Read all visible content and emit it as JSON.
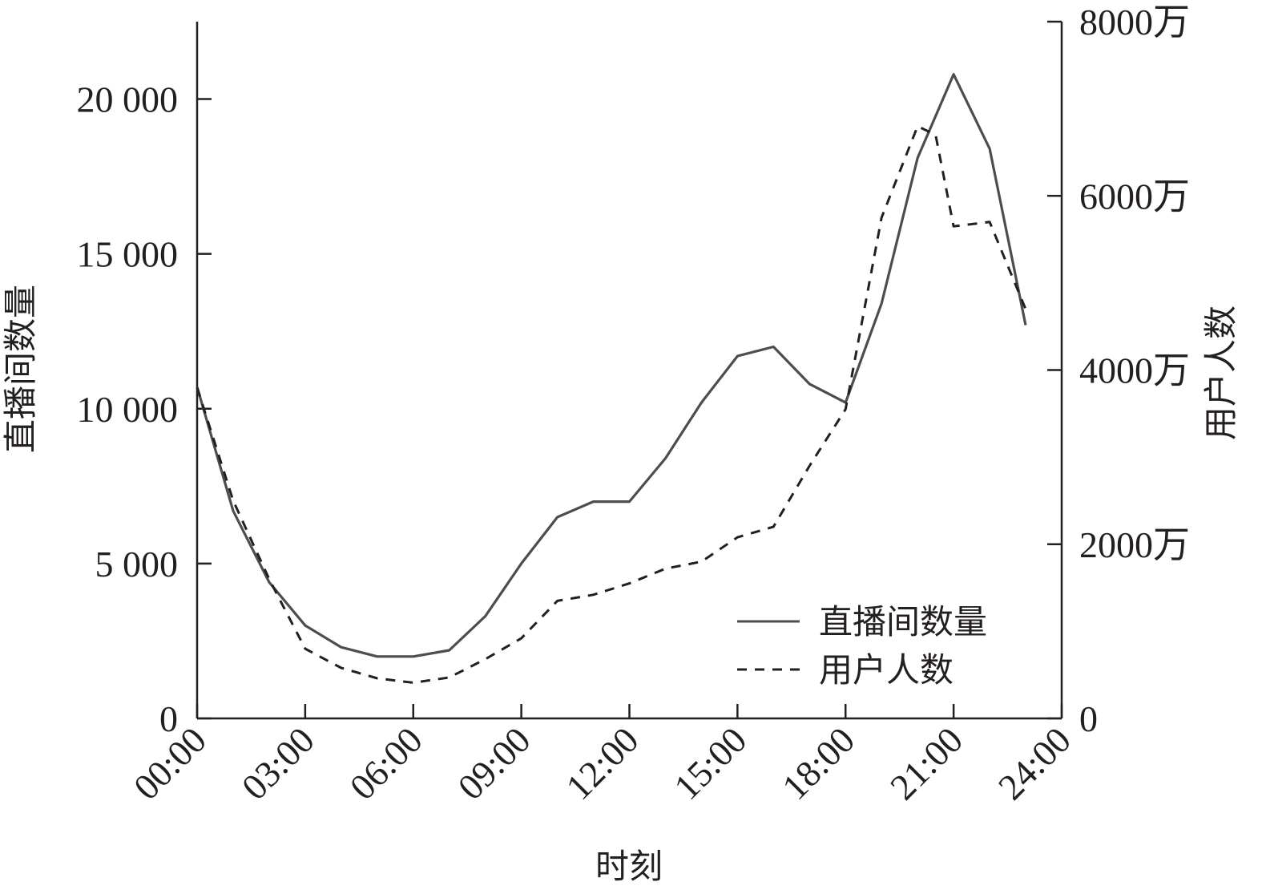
{
  "chart_data": {
    "type": "line",
    "xlabel": "时刻",
    "ylabel_left": "直播间数量",
    "ylabel_right": "用户人数",
    "x_tick_labels": [
      "00:00",
      "03:00",
      "06:00",
      "09:00",
      "12:00",
      "15:00",
      "18:00",
      "21:00",
      "24:00"
    ],
    "x_ticks": [
      0,
      3,
      6,
      9,
      12,
      15,
      18,
      21,
      24
    ],
    "xlim": [
      0,
      24
    ],
    "y_left_ticks": [
      0,
      5000,
      10000,
      15000,
      20000
    ],
    "y_left_tick_labels": [
      "0",
      "5 000",
      "10 000",
      "15 000",
      "20 000"
    ],
    "y_left_lim": [
      0,
      22500
    ],
    "y_right_ticks": [
      0,
      2000,
      4000,
      6000,
      8000
    ],
    "y_right_tick_labels": [
      "0",
      "2000万",
      "4000万",
      "6000万",
      "8000万"
    ],
    "y_right_lim": [
      0,
      8000
    ],
    "legend_position": "lower-right",
    "grid": false,
    "series": [
      {
        "name": "直播间数量",
        "axis": "left",
        "style": "solid",
        "color": "#4d4d4f",
        "x": [
          0,
          1,
          2,
          3,
          4,
          5,
          6,
          7,
          8,
          9,
          10,
          11,
          12,
          13,
          14,
          15,
          16,
          17,
          18,
          19,
          20,
          21,
          22,
          23
        ],
        "values": [
          10700,
          6700,
          4400,
          3000,
          2300,
          2000,
          2000,
          2200,
          3300,
          5000,
          6500,
          7000,
          7000,
          8400,
          10200,
          11700,
          12000,
          10800,
          10200,
          13400,
          18100,
          20800,
          18400,
          12700
        ]
      },
      {
        "name": "用户人数",
        "axis": "right",
        "style": "dashed",
        "color": "#231f20",
        "x": [
          0,
          1,
          2,
          3,
          4,
          5,
          6,
          7,
          8,
          9,
          10,
          11,
          12,
          13,
          14,
          15,
          16,
          17,
          18,
          19,
          20,
          20.5,
          21,
          22,
          23
        ],
        "values": [
          3800,
          2500,
          1600,
          800,
          580,
          460,
          410,
          470,
          680,
          920,
          1350,
          1420,
          1550,
          1720,
          1800,
          2080,
          2200,
          2900,
          3550,
          5750,
          6800,
          6700,
          5650,
          5700,
          4700
        ]
      }
    ]
  }
}
